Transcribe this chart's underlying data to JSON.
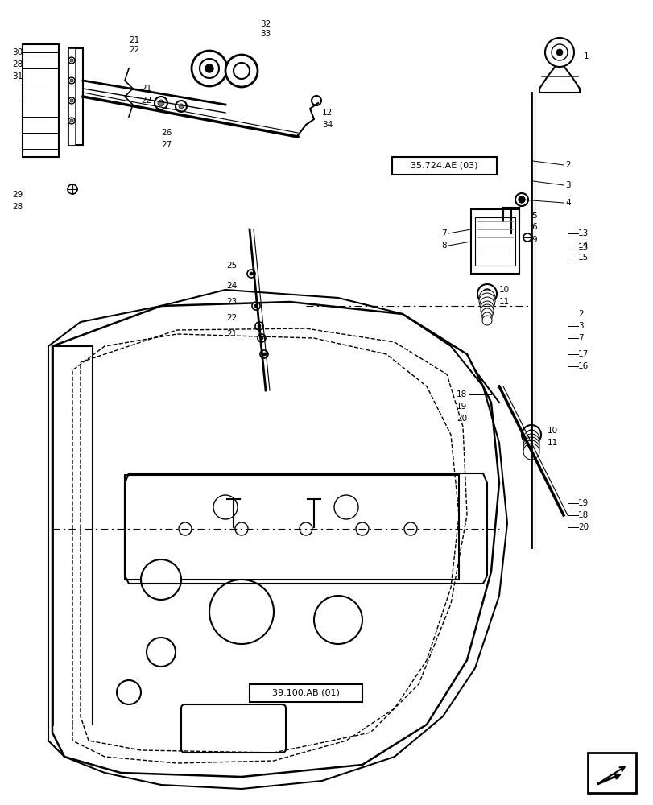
{
  "title": "",
  "background_color": "#ffffff",
  "line_color": "#000000",
  "light_gray": "#888888",
  "box_color": "#000000",
  "labels": {
    "box1": "35.724.AE (03)",
    "box2": "39.100.AB (01)"
  },
  "part_numbers": [
    1,
    2,
    3,
    4,
    5,
    6,
    7,
    8,
    9,
    10,
    11,
    12,
    13,
    14,
    15,
    16,
    17,
    18,
    19,
    20,
    21,
    22,
    23,
    24,
    25,
    26,
    27,
    28,
    29,
    30,
    31,
    32,
    33,
    34
  ],
  "figsize": [
    8.12,
    10.0
  ],
  "dpi": 100
}
